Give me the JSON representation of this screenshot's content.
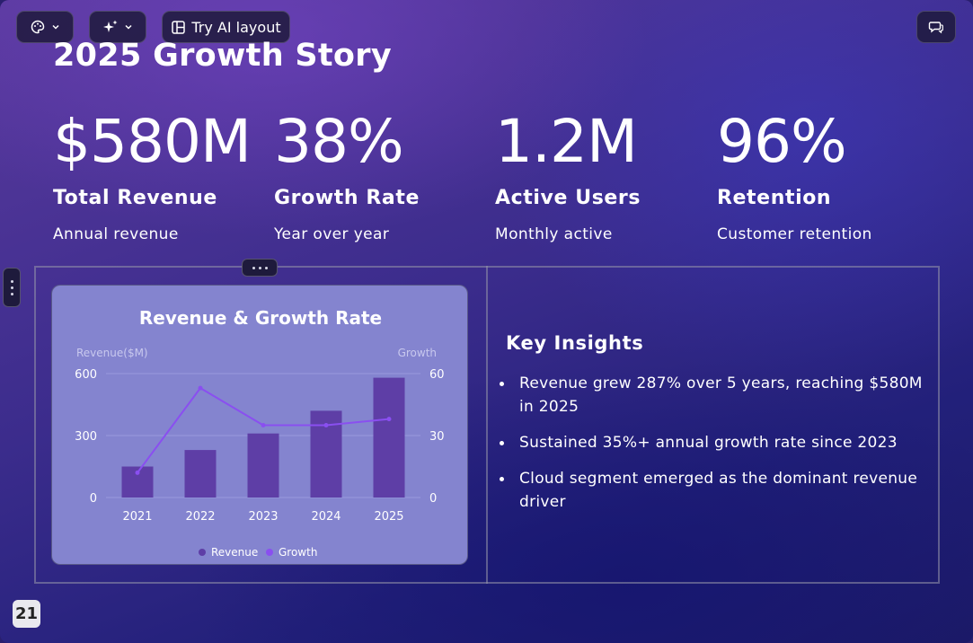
{
  "toolbar": {
    "theme_icon": "palette-icon",
    "ai_icon": "sparkles-icon",
    "try_ai_label": "Try AI layout",
    "comment_icon": "chat-icon"
  },
  "slide": {
    "title": "2025 Growth Story",
    "stats": [
      {
        "value": "$580M",
        "label": "Total Revenue",
        "sub": "Annual revenue"
      },
      {
        "value": "38%",
        "label": "Growth Rate",
        "sub": "Year over year"
      },
      {
        "value": "1.2M",
        "label": "Active Users",
        "sub": "Monthly active"
      },
      {
        "value": "96%",
        "label": "Retention",
        "sub": "Customer retention"
      }
    ],
    "insights": {
      "heading": "Key Insights",
      "items": [
        "Revenue grew 287% over 5 years, reaching $580M in 2025",
        "Sustained 35%+ annual growth rate since 2023",
        "Cloud segment emerged as the dominant revenue driver"
      ]
    },
    "page_number": "21"
  },
  "colors": {
    "bar": "#5e3ea6",
    "line": "#8a4ff0",
    "card_bg": "#8484cf",
    "grid": "#9a9add"
  },
  "chart_data": {
    "type": "bar",
    "title": "Revenue & Growth Rate",
    "categories": [
      "2021",
      "2022",
      "2023",
      "2024",
      "2025"
    ],
    "y_left": {
      "label": "Revenue($M)",
      "ticks": [
        "0",
        "300",
        "600"
      ],
      "range": [
        0,
        600
      ]
    },
    "y_right": {
      "label": "Growth",
      "ticks": [
        "0",
        "30",
        "60"
      ],
      "range": [
        0,
        60
      ]
    },
    "series": [
      {
        "name": "Revenue",
        "type": "bar",
        "axis": "left",
        "values": [
          150,
          230,
          310,
          420,
          580
        ]
      },
      {
        "name": "Growth",
        "type": "line",
        "axis": "right",
        "values": [
          12,
          53,
          35,
          35,
          38
        ]
      }
    ],
    "legend": "bottom"
  }
}
